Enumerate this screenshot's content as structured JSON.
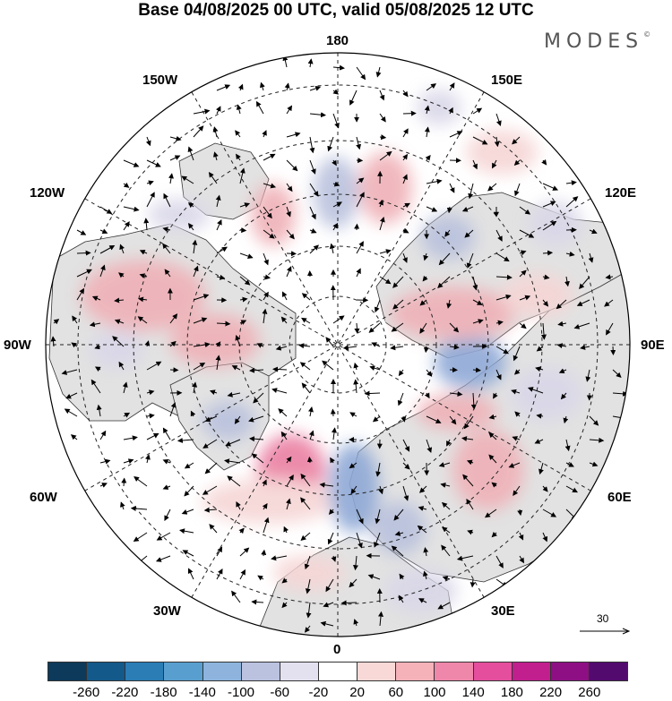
{
  "header": {
    "title": "Base 04/08/2025 00 UTC, valid 05/08/2025 12 UTC",
    "logo_text": "MODES",
    "logo_mark": "©"
  },
  "map": {
    "projection": "north polar stereographic",
    "longitude_labels": {
      "top": "180",
      "top_left": "150W",
      "top_right": "150E",
      "upper_left": "120W",
      "upper_right": "120E",
      "left": "90W",
      "right": "90E",
      "lower_left": "60W",
      "lower_right": "60E",
      "bottom_left": "30W",
      "bottom_right": "30E",
      "bottom": "0"
    },
    "reference_vector": "30",
    "anomaly_colors": {
      "positive_light": "#f6d5d5",
      "positive_mid": "#efb1b7",
      "positive_strong": "#ea7fa2",
      "negative_light": "#d9d7e8",
      "negative_mid": "#b9c1dd",
      "negative_strong": "#8ea8d6",
      "land": "#e2e2e2"
    }
  },
  "colorbar": {
    "colors": [
      "#0d3a5a",
      "#13598a",
      "#2a7db5",
      "#589fcf",
      "#8eb4de",
      "#bac2e0",
      "#e3e1f0",
      "#ffffff",
      "#f9d9d7",
      "#f5b2b9",
      "#ef87aa",
      "#e44e9c",
      "#c21f8e",
      "#8e0f84",
      "#530a6f"
    ],
    "tick_labels": [
      "-260",
      "-220",
      "-180",
      "-140",
      "-100",
      "-60",
      "-20",
      "20",
      "60",
      "100",
      "140",
      "180",
      "220",
      "260"
    ]
  }
}
